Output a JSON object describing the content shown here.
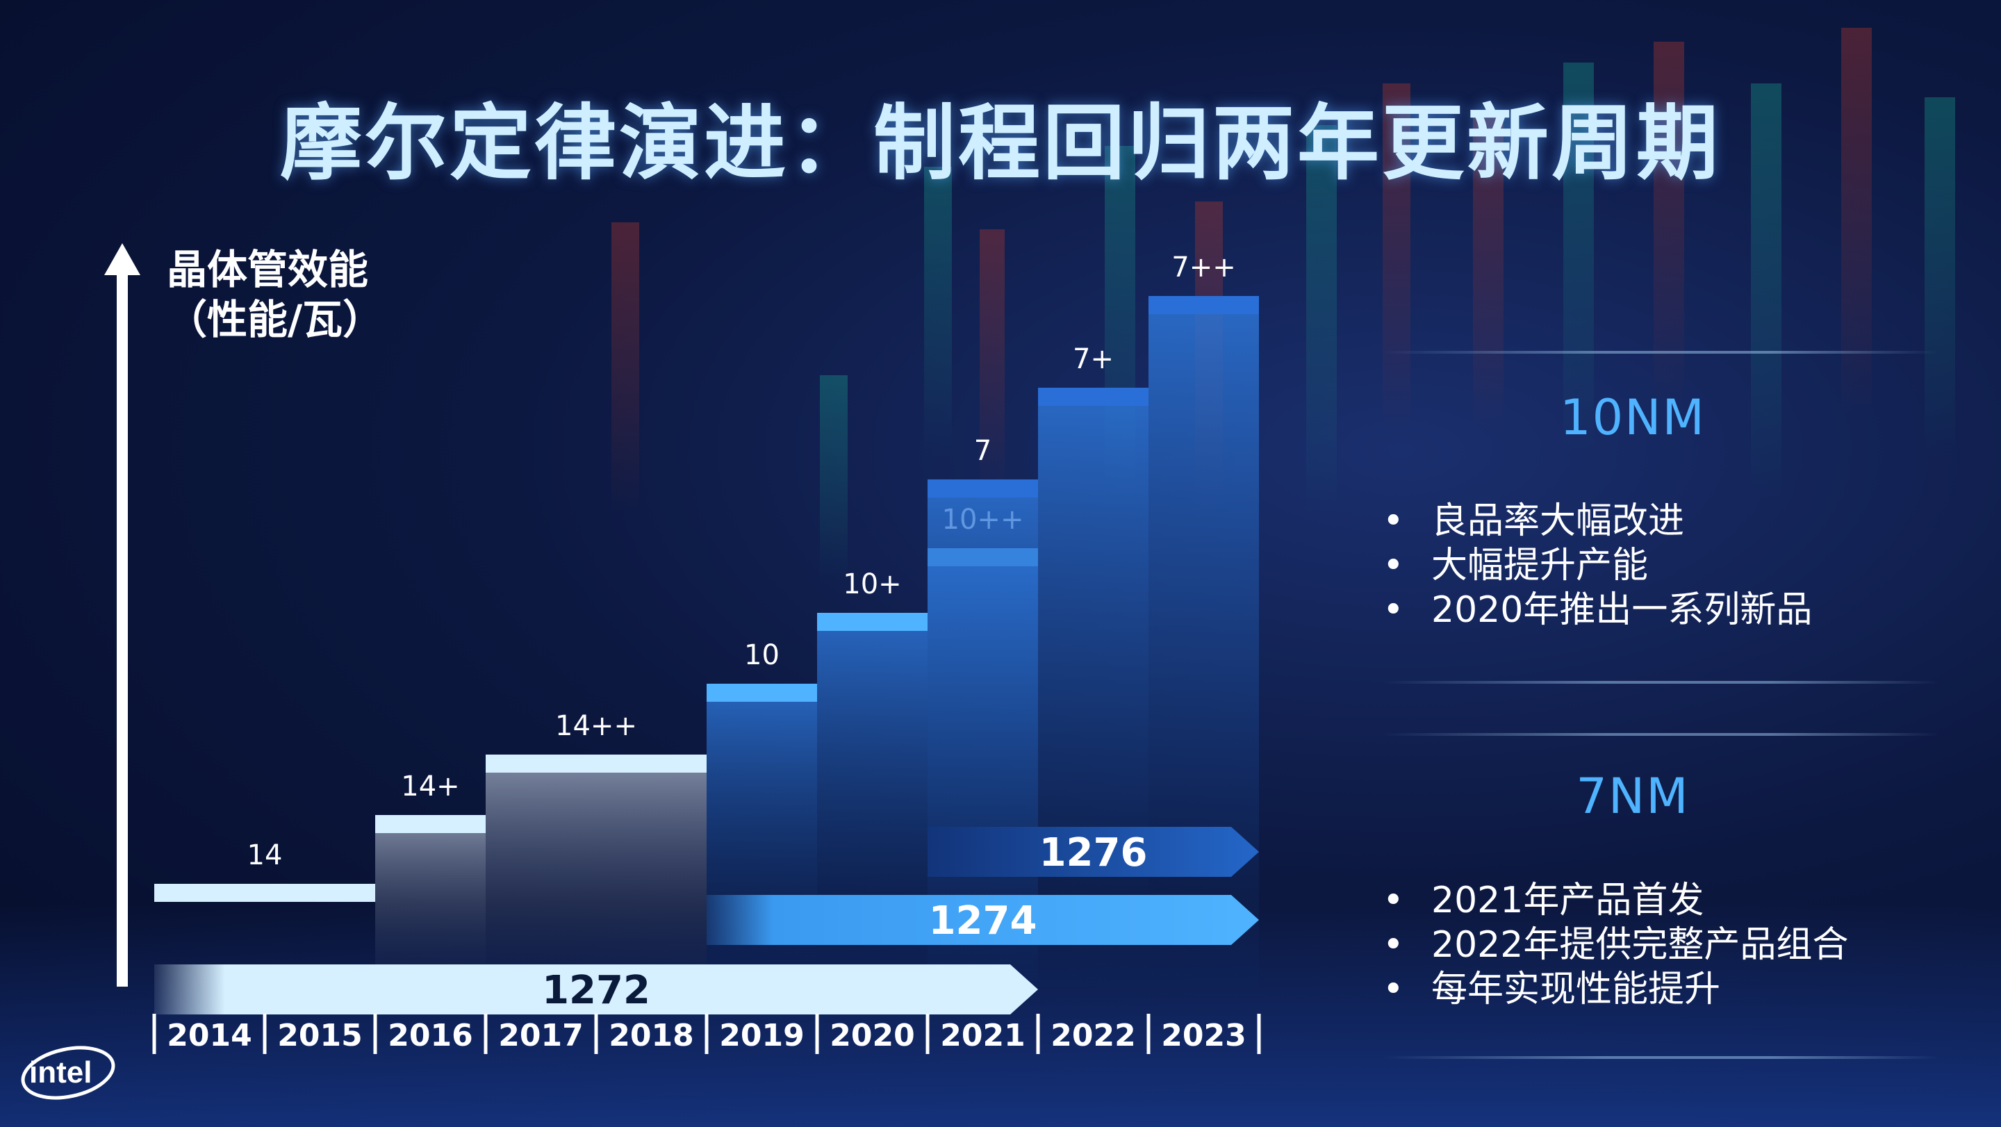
{
  "title": "摩尔定律演进：制程回归两年更新周期",
  "colors": {
    "accent": "#4fb3ff",
    "pale": "#d6f0ff",
    "mid_blue": "#3a8ee8",
    "deep_blue": "#1d5bc0",
    "background": "#0c1840"
  },
  "chart_data": {
    "type": "bar",
    "title": "摩尔定律演进：制程回归两年更新周期",
    "ylabel_line1": "晶体管效能",
    "ylabel_line2": "（性能/瓦）",
    "categories": [
      "2014",
      "2015",
      "2016",
      "2017",
      "2018",
      "2019",
      "2020",
      "2021",
      "2022",
      "2023"
    ],
    "nodes": [
      {
        "label": "14",
        "start": "2014",
        "end": "2015",
        "level": 0.3
      },
      {
        "label": "14+",
        "start": "2016",
        "end": "2016",
        "level": 1.95
      },
      {
        "label": "14++",
        "start": "2017",
        "end": "2018",
        "level": 3.4
      },
      {
        "label": "10",
        "start": "2019",
        "end": "2019",
        "level": 5.1
      },
      {
        "label": "10+",
        "start": "2020",
        "end": "2020",
        "level": 6.8
      },
      {
        "label": "10++",
        "start": "2021",
        "end": "2021",
        "level": 8.35
      },
      {
        "label": "7",
        "start": "2021",
        "end": "2021",
        "level": 10.0
      },
      {
        "label": "7+",
        "start": "2022",
        "end": "2022",
        "level": 12.2
      },
      {
        "label": "7++",
        "start": "2023",
        "end": "2023",
        "level": 14.4
      }
    ],
    "processes": [
      {
        "name": "1272",
        "start": "2014",
        "end": "2021"
      },
      {
        "name": "1274",
        "start": "2019",
        "end": "2023"
      },
      {
        "name": "1276",
        "start": "2021",
        "end": "2023"
      }
    ],
    "ylim": [
      0,
      18
    ],
    "grid": false,
    "legend": "none"
  },
  "panels": {
    "tenm": {
      "title": "10NM",
      "items": [
        "良品率大幅改进",
        "大幅提升产能",
        "2020年推出一系列新品"
      ]
    },
    "sevenm": {
      "title": "7NM",
      "items": [
        "2021年产品首发",
        "2022年提供完整产品组合",
        "每年实现性能提升"
      ]
    }
  },
  "logo": {
    "text": "intel"
  }
}
